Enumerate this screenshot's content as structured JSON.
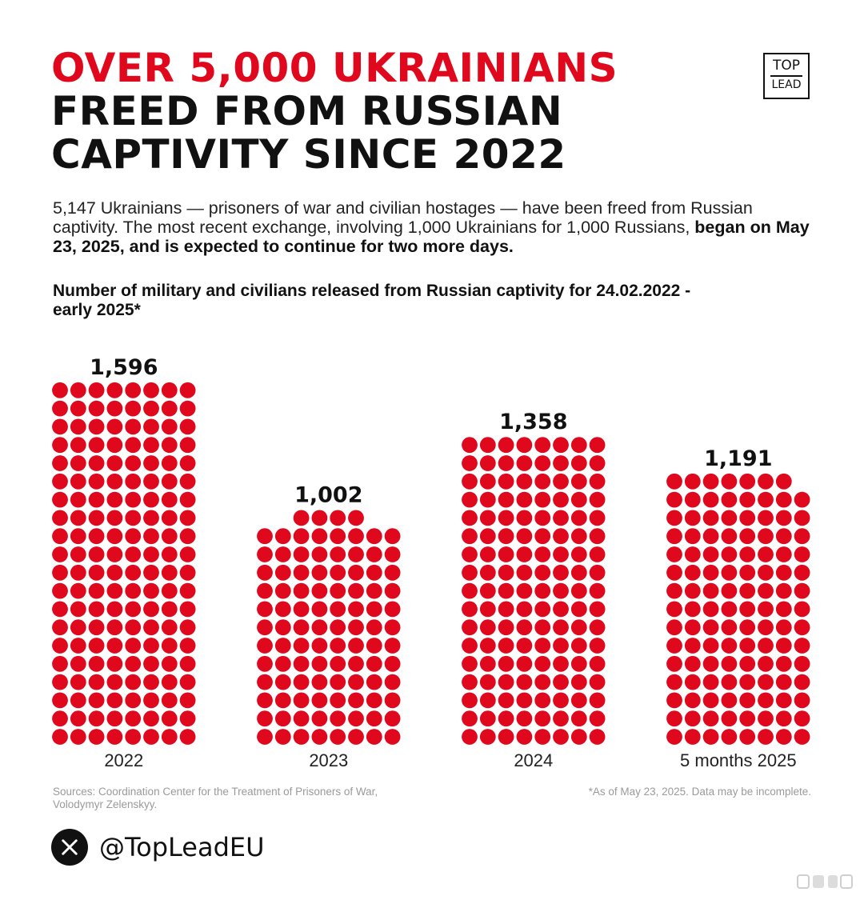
{
  "header": {
    "title_line1": "OVER 5,000 UKRAINIANS",
    "title_line2": "FREED FROM RUSSIAN",
    "title_line3": "CAPTIVITY SINCE 2022",
    "accent_color": "#e0081c"
  },
  "logo": {
    "line1": "TOP",
    "line2": "LEAD"
  },
  "intro": {
    "plain": "5,147 Ukrainians — prisoners of war and civilian hostages — have been freed from Russian captivity. The most recent exchange, involving 1,000 Ukrainians for 1,000 Russians, ",
    "bold": "began on May 23, 2025, and is expected to continue for two more days."
  },
  "chart_data": {
    "type": "bar",
    "style": "dot-matrix pictogram",
    "title": "Number of military and civilians released from Russian captivity for 24.02.2022 - early 2025*",
    "categories": [
      "2022",
      "2023",
      "2024",
      "5 months 2025"
    ],
    "values": [
      1596,
      1002,
      1358,
      1191
    ],
    "value_labels": [
      "1,596",
      "1,002",
      "1,358",
      "1,191"
    ],
    "xlabel": "",
    "ylabel": "",
    "ylim": [
      0,
      1600
    ],
    "grid": false,
    "dot_color": "#e0081c"
  },
  "footer": {
    "sources": "Sources: Coordination Center for the Treatment of Prisoners of War, Volodymyr Zelenskyy.",
    "note": "*As of May 23, 2025. Data may be incomplete.",
    "social_icon": "x-icon",
    "handle": "@TopLeadEU"
  },
  "watermark": {
    "icon": "weibo-watermark-icon"
  }
}
